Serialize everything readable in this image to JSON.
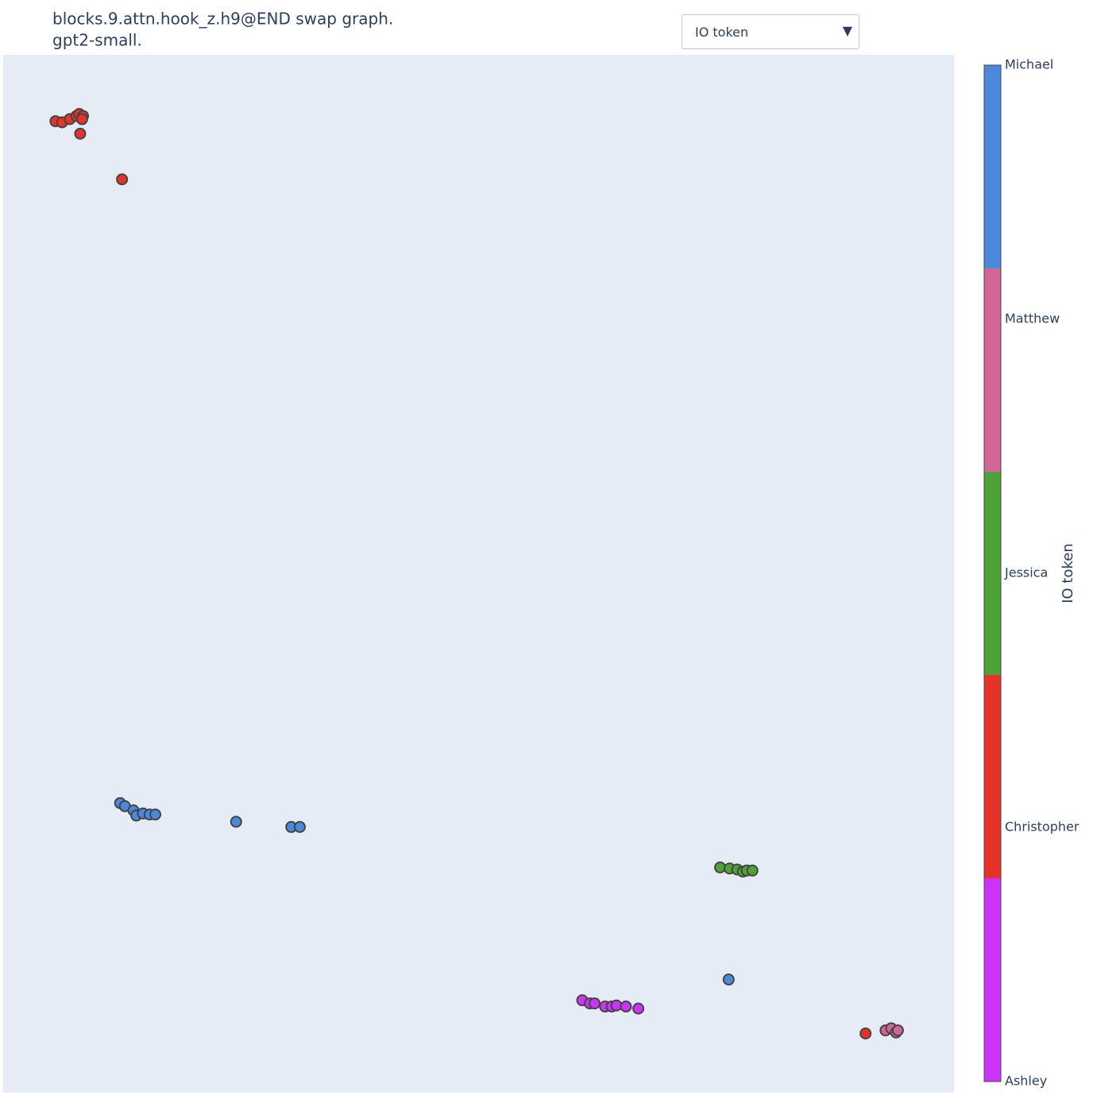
{
  "chart_data": {
    "type": "scatter",
    "title": "blocks.9.attn.hook_z.h9@END swap graph.",
    "subtitle": "gpt2-small.",
    "dropdown": "IO token",
    "colorbar_title": "IO token",
    "xlim": [
      0,
      100
    ],
    "ylim": [
      0,
      100
    ],
    "grid": false,
    "series": [
      {
        "name": "Ashley",
        "color": "#cc33ff",
        "x": [
          60.9,
          61.7,
          62.2,
          63.3,
          64.0,
          64.5,
          65.5,
          66.8
        ],
        "y": [
          8.9,
          8.6,
          8.6,
          8.3,
          8.3,
          8.4,
          8.3,
          8.1
        ]
      },
      {
        "name": "Christopher",
        "color": "#e6332a",
        "x": [
          5.5,
          6.2,
          7.0,
          7.7,
          8.0,
          8.4,
          8.3,
          8.1,
          12.5,
          90.7
        ],
        "y": [
          93.6,
          93.5,
          93.8,
          94.1,
          94.3,
          94.1,
          93.8,
          92.4,
          88.0,
          5.7
        ]
      },
      {
        "name": "Jessica",
        "color": "#4fa336",
        "x": [
          75.4,
          76.4,
          77.2,
          77.8,
          78.2,
          78.8
        ],
        "y": [
          21.7,
          21.6,
          21.5,
          21.3,
          21.4,
          21.4
        ]
      },
      {
        "name": "Matthew",
        "color": "#d26698",
        "x": [
          92.8,
          93.4,
          93.9,
          94.1
        ],
        "y": [
          6.0,
          6.2,
          5.8,
          6.0
        ]
      },
      {
        "name": "Michael",
        "color": "#4a89dc",
        "x": [
          12.3,
          12.8,
          13.7,
          14.0,
          14.7,
          15.4,
          16.0,
          24.5,
          30.3,
          31.2,
          76.3
        ],
        "y": [
          27.9,
          27.6,
          27.2,
          26.7,
          26.9,
          26.8,
          26.8,
          26.1,
          25.6,
          25.6,
          10.9
        ]
      }
    ]
  }
}
